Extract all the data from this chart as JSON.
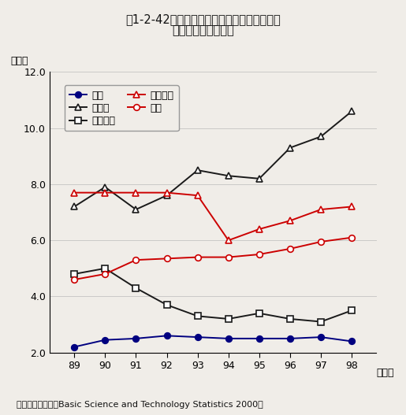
{
  "title_line1": "第1-2-42図　大学研究費に占める産業界負担",
  "title_line2": "研究費の割合の推移",
  "xlabel_note": "（年）",
  "ylabel_note": "（％）",
  "source_text": "資料：ＯＥＣＤ「Basic Science and Technology Statistics 2000」",
  "years": [
    89,
    90,
    91,
    92,
    93,
    94,
    95,
    96,
    97,
    98
  ],
  "series": [
    {
      "label": "日本",
      "color": "#000080",
      "marker": "o",
      "marker_fill": "#000080",
      "values": [
        2.2,
        2.45,
        2.5,
        2.6,
        2.55,
        2.5,
        2.5,
        2.5,
        2.55,
        2.4
      ]
    },
    {
      "label": "フランス",
      "color": "#1a1a1a",
      "marker": "s",
      "marker_fill": "white",
      "values": [
        4.8,
        5.0,
        4.3,
        3.7,
        3.3,
        3.2,
        3.4,
        3.2,
        3.1,
        3.5
      ]
    },
    {
      "label": "米国",
      "color": "#cc0000",
      "marker": "o",
      "marker_fill": "white",
      "values": [
        4.6,
        4.8,
        5.3,
        5.35,
        5.4,
        5.4,
        5.5,
        5.7,
        5.95,
        6.1
      ]
    },
    {
      "label": "ドイツ",
      "color": "#1a1a1a",
      "marker": "^",
      "marker_fill": "white",
      "values": [
        7.2,
        7.9,
        7.1,
        7.6,
        8.5,
        8.3,
        8.2,
        9.3,
        9.7,
        10.6
      ]
    },
    {
      "label": "イギリス",
      "color": "#cc0000",
      "marker": "^",
      "marker_fill": "white",
      "values": [
        7.7,
        7.7,
        7.7,
        7.7,
        7.6,
        6.0,
        6.4,
        6.7,
        7.1,
        7.2
      ]
    }
  ],
  "ylim": [
    2.0,
    12.0
  ],
  "yticks": [
    2.0,
    4.0,
    6.0,
    8.0,
    10.0,
    12.0
  ],
  "xticks": [
    89,
    90,
    91,
    92,
    93,
    94,
    95,
    96,
    97,
    98
  ],
  "fig_bg": "#f0ede8",
  "legend_order": [
    0,
    3,
    1,
    4,
    2
  ]
}
